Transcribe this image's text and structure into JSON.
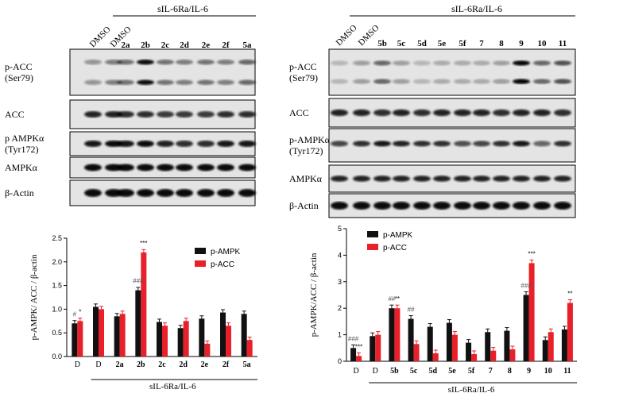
{
  "figure": {
    "left": {
      "group_label": "sIL-6Ra/IL-6",
      "lanes": [
        "DMSO",
        "DMSO",
        "2a",
        "2b",
        "2c",
        "2d",
        "2e",
        "2f",
        "5a"
      ],
      "blot_rows": [
        "p-ACC\n(Ser79)",
        "ACC",
        "p AMPKα\n(Tyr172)",
        "AMPKα",
        "β-Actin"
      ]
    },
    "right": {
      "group_label": "sIL-6Ra/IL-6",
      "lanes": [
        "DMSO",
        "DMSO",
        "5b",
        "5c",
        "5d",
        "5e",
        "5f",
        "7",
        "8",
        "9",
        "10",
        "11"
      ],
      "blot_rows": [
        "p-ACC\n(Ser79)",
        "ACC",
        "p-AMPKα\n(Tyr172)",
        "AMPKα",
        "β-Actin"
      ]
    }
  },
  "chart_data": [
    {
      "type": "bar",
      "ylabel": "p-AMPK/ ACC / β-actin",
      "ylim": [
        0,
        2.5
      ],
      "yticks": [
        "0.0",
        "0.5",
        "1.0",
        "1.5",
        "2.0",
        "2.5"
      ],
      "categories": [
        "D",
        "D",
        "2a",
        "2b",
        "2c",
        "2d",
        "2e",
        "2f",
        "5a"
      ],
      "group_label": "sIL-6Ra/IL-6",
      "series": [
        {
          "name": "p-AMPK",
          "color": "#111111",
          "values": [
            0.7,
            1.05,
            0.85,
            1.4,
            0.73,
            0.6,
            0.8,
            0.93,
            0.9
          ]
        },
        {
          "name": "p-ACC",
          "color": "#e8202a",
          "values": [
            0.75,
            1.0,
            0.9,
            2.2,
            0.65,
            0.75,
            0.27,
            0.65,
            0.35
          ]
        }
      ],
      "annotations": [
        {
          "category": 0,
          "series": 0,
          "text": "#"
        },
        {
          "category": 0,
          "series": 1,
          "text": "*"
        },
        {
          "category": 3,
          "series": 0,
          "text": "###"
        },
        {
          "category": 3,
          "series": 1,
          "text": "***"
        }
      ],
      "legend": "top-right"
    },
    {
      "type": "bar",
      "ylabel": "p-AMPK/ACC / β-actin",
      "ylim": [
        0,
        5
      ],
      "yticks": [
        "0",
        "1",
        "2",
        "3",
        "4",
        "5"
      ],
      "categories": [
        "D",
        "D",
        "5b",
        "5c",
        "5d",
        "5e",
        "5f",
        "7",
        "8",
        "9",
        "10",
        "11"
      ],
      "group_label": "sIL-6Ra/IL-6",
      "series": [
        {
          "name": "p-AMPK",
          "color": "#111111",
          "values": [
            0.5,
            0.95,
            2.0,
            1.6,
            1.3,
            1.45,
            0.7,
            1.1,
            1.15,
            2.5,
            0.8,
            1.2
          ]
        },
        {
          "name": "p-ACC",
          "color": "#e8202a",
          "values": [
            0.2,
            1.0,
            2.0,
            0.65,
            0.3,
            1.0,
            0.27,
            0.4,
            0.45,
            3.7,
            1.1,
            2.2
          ]
        }
      ],
      "annotations": [
        {
          "category": 0,
          "series": 0,
          "text": "###"
        },
        {
          "category": 0,
          "series": 1,
          "text": "***"
        },
        {
          "category": 2,
          "series": 0,
          "text": "##"
        },
        {
          "category": 2,
          "series": 1,
          "text": "**"
        },
        {
          "category": 3,
          "series": 0,
          "text": "##"
        },
        {
          "category": 9,
          "series": 0,
          "text": "###"
        },
        {
          "category": 9,
          "series": 1,
          "text": "***"
        },
        {
          "category": 11,
          "series": 1,
          "text": "**"
        }
      ],
      "legend": "top-left"
    }
  ]
}
